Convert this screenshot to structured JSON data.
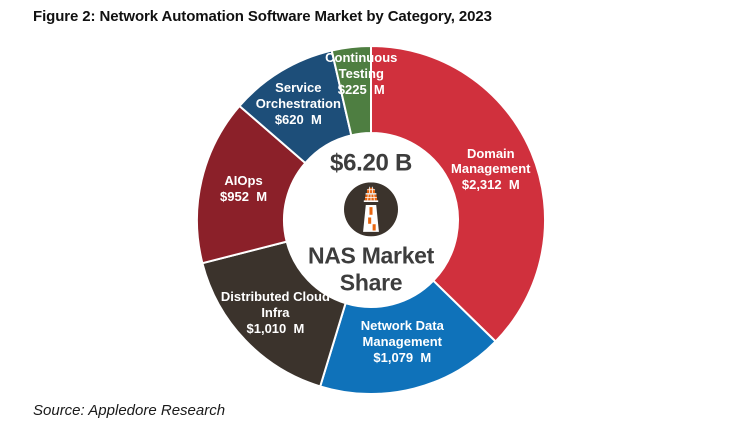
{
  "title": "Figure 2: Network Automation Software Market by Category, 2023",
  "source": "Source: Appledore Research",
  "icons": {
    "center_logo": "lighthouse-icon"
  },
  "chart_data": {
    "type": "pie",
    "subtype": "donut",
    "title": "Figure 2: Network Automation Software Market by Category, 2023",
    "total_label": "$6.20 B",
    "center_label": "NAS Market Share",
    "start_angle": "12 o'clock",
    "direction": "clockwise",
    "total_value_millions": 6198,
    "segments": [
      {
        "id": "domain-management",
        "name": "Domain Management",
        "value": 2312,
        "label_lines": [
          "Domain",
          "Management"
        ],
        "value_label": "$2,312  M",
        "color": "#d0303d"
      },
      {
        "id": "network-data-management",
        "name": "Network Data Management",
        "value": 1079,
        "label_lines": [
          "Network Data",
          "Management"
        ],
        "value_label": "$1,079  M",
        "color": "#0f72ba"
      },
      {
        "id": "distributed-cloud-infra",
        "name": "Distributed Cloud Infra",
        "value": 1010,
        "label_lines": [
          "Distributed Cloud",
          "Infra"
        ],
        "value_label": "$1,010  M",
        "color": "#3b332c"
      },
      {
        "id": "aiops",
        "name": "AIOps",
        "value": 952,
        "label_lines": [
          "AIOps"
        ],
        "value_label": "$952  M",
        "color": "#8b2029"
      },
      {
        "id": "service-orchestration",
        "name": "Service Orchestration",
        "value": 620,
        "label_lines": [
          "Service",
          "Orchestration"
        ],
        "value_label": "$620  M",
        "color": "#1d4e79"
      },
      {
        "id": "continuous-testing",
        "name": "Continuous Testing",
        "value": 225,
        "label_lines": [
          "Continuous",
          "Testing"
        ],
        "value_label": "$225  M",
        "color": "#4e7e41"
      }
    ],
    "colors": {
      "label_text": "#ffffff",
      "center_text": "#3d3d3d",
      "logo_circle": "#3b332c",
      "logo_accent": "#e8650f"
    }
  }
}
